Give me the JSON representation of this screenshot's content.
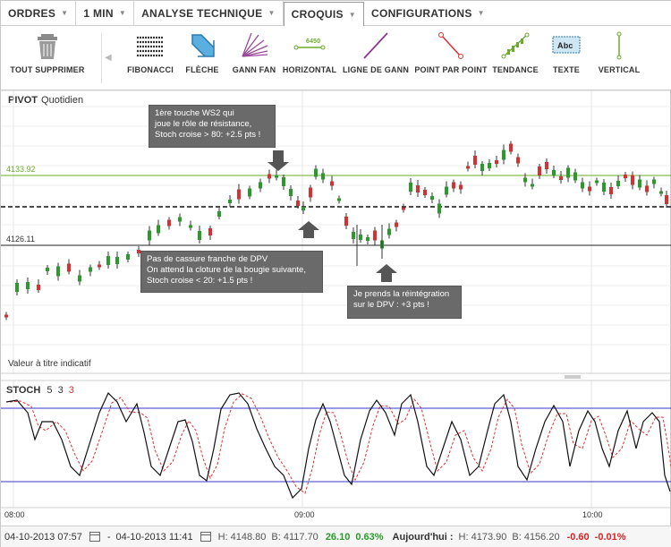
{
  "menubar": {
    "items": [
      {
        "label": "ORDRES"
      },
      {
        "label": "1 MIN"
      },
      {
        "label": "ANALYSE TECHNIQUE"
      },
      {
        "label": "CROQUIS"
      },
      {
        "label": "CONFIGURATIONS"
      }
    ]
  },
  "toolbar": {
    "delete_all": "TOUT SUPPRIMER",
    "tools": [
      {
        "label": "FIBONACCI",
        "icon": "fibonacci-icon"
      },
      {
        "label": "FLÈCHE",
        "icon": "arrow-icon"
      },
      {
        "label": "GANN FAN",
        "icon": "gann-fan-icon"
      },
      {
        "label": "HORIZONTAL",
        "icon": "horizontal-line-icon",
        "icon_text": "6450"
      },
      {
        "label": "LIGNE DE GANN",
        "icon": "gann-line-icon"
      },
      {
        "label": "POINT PAR POINT",
        "icon": "point-to-point-icon"
      },
      {
        "label": "TENDANCE",
        "icon": "trend-icon"
      },
      {
        "label": "TEXTE",
        "icon": "text-icon",
        "icon_text": "Abc"
      },
      {
        "label": "VERTICAL",
        "icon": "vertical-line-icon"
      }
    ]
  },
  "price_pane": {
    "title": "PIVOT",
    "subtitle": "Quotidien",
    "footnote": "Valeur à titre indicatif",
    "levels": [
      {
        "label": "4133.92",
        "color": "#6aaa2a"
      },
      {
        "label": "4126.11",
        "color": "#222222"
      }
    ],
    "annotations": [
      {
        "text": [
          "1ère touche WS2 qui",
          "joue le rôle de résistance,",
          "Stoch croise > 80: +2.5 pts !"
        ]
      },
      {
        "text": [
          "Pas de cassure franche de DPV",
          "On attend la cloture de la bougie suivante,",
          "Stoch croise < 20: +1.5 pts !"
        ]
      },
      {
        "text": [
          "Je prends la réintégration",
          "sur le DPV : +3 pts !"
        ]
      }
    ]
  },
  "stoch_pane": {
    "title": "STOCH",
    "param1": "5",
    "param2": "3",
    "param3": "3",
    "colors": {
      "k": "#111111",
      "d": "#e03030",
      "bands": "#3a3acc"
    }
  },
  "time_axis": [
    "08:00",
    "09:00",
    "10:00"
  ],
  "footer": {
    "date_from": "04-10-2013 07:57",
    "dash": "-",
    "date_to": "04-10-2013 11:41",
    "high": "H: 4148.80",
    "low": "B: 4117.70",
    "change": "26.10",
    "change_pct": "0.63%",
    "today_label": "Aujourd'hui :",
    "today_high": "H: 4173.90",
    "today_low": "B: 4156.20",
    "today_change": "-0.60",
    "today_change_pct": "-0.01%"
  },
  "colors": {
    "up": "#2a9a2a",
    "down": "#d63030",
    "grid": "#e6e6e6",
    "annotation_bg": "#6a6a6a"
  },
  "chart_data": {
    "type": "candlestick",
    "levels": [
      4133.92,
      4126.11
    ],
    "candle_direction": [
      "down",
      "up",
      "up",
      "down",
      "up",
      "up",
      "down",
      "up",
      "up",
      "down",
      "up",
      "up",
      "up",
      "down",
      "up",
      "up",
      "down",
      "up",
      "up",
      "up",
      "down",
      "up",
      "up",
      "down",
      "up",
      "up",
      "down",
      "up",
      "up",
      "up",
      "down",
      "up",
      "down",
      "up",
      "up",
      "down",
      "up",
      "down",
      "up",
      "up",
      "up",
      "down",
      "up",
      "up",
      "down",
      "down",
      "up",
      "down",
      "down",
      "up",
      "up",
      "up",
      "down",
      "down",
      "down",
      "down",
      "up",
      "up",
      "down",
      "up",
      "down",
      "down",
      "up",
      "up",
      "down",
      "down",
      "up",
      "down",
      "up",
      "up",
      "up",
      "down",
      "up",
      "up",
      "down",
      "up",
      "down",
      "down",
      "up",
      "down",
      "up",
      "up",
      "down",
      "up",
      "down",
      "up",
      "down",
      "up",
      "up",
      "down",
      "up",
      "down",
      "up",
      "down",
      "down",
      "up",
      "down",
      "up",
      "down",
      "down"
    ]
  }
}
